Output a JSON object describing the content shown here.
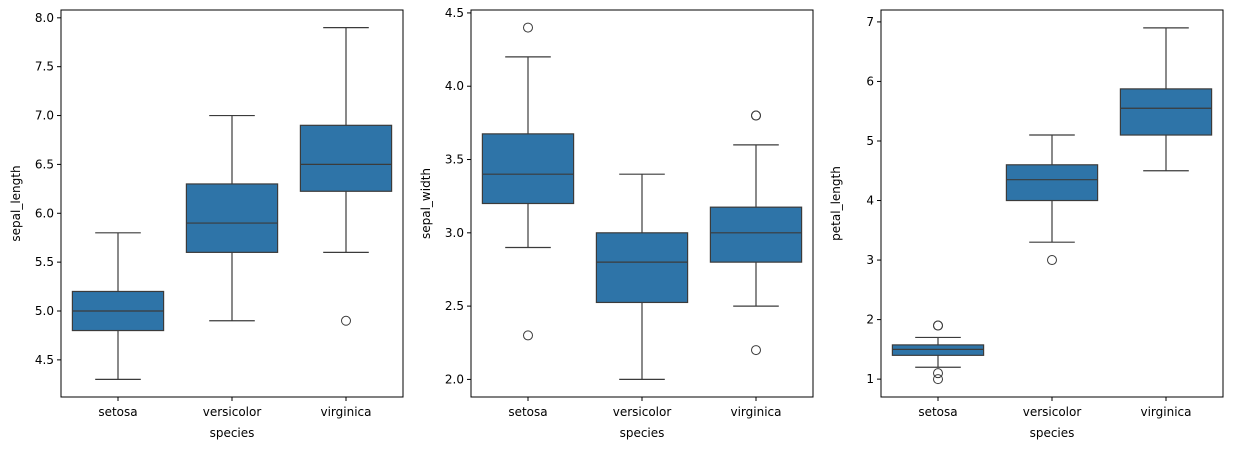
{
  "chart_data": [
    {
      "type": "box",
      "xlabel": "species",
      "ylabel": "sepal_length",
      "categories": [
        "setosa",
        "versicolor",
        "virginica"
      ],
      "ylim": [
        4.12,
        8.08
      ],
      "yticks": [
        "4.5",
        "5.0",
        "5.5",
        "6.0",
        "6.5",
        "7.0",
        "7.5",
        "8.0"
      ],
      "box_color": "#2e74a8",
      "boxes": [
        {
          "category": "setosa",
          "whisker_low": 4.3,
          "q1": 4.8,
          "median": 5.0,
          "q3": 5.2,
          "whisker_high": 5.8,
          "outliers": []
        },
        {
          "category": "versicolor",
          "whisker_low": 4.9,
          "q1": 5.6,
          "median": 5.9,
          "q3": 6.3,
          "whisker_high": 7.0,
          "outliers": []
        },
        {
          "category": "virginica",
          "whisker_low": 5.6,
          "q1": 6.225,
          "median": 6.5,
          "q3": 6.9,
          "whisker_high": 7.9,
          "outliers": [
            4.9
          ]
        }
      ]
    },
    {
      "type": "box",
      "xlabel": "species",
      "ylabel": "sepal_width",
      "categories": [
        "setosa",
        "versicolor",
        "virginica"
      ],
      "ylim": [
        1.88,
        4.52
      ],
      "yticks": [
        "2.0",
        "2.5",
        "3.0",
        "3.5",
        "4.0",
        "4.5"
      ],
      "box_color": "#2e74a8",
      "boxes": [
        {
          "category": "setosa",
          "whisker_low": 2.9,
          "q1": 3.2,
          "median": 3.4,
          "q3": 3.675,
          "whisker_high": 4.2,
          "outliers": [
            2.3,
            4.4
          ]
        },
        {
          "category": "versicolor",
          "whisker_low": 2.0,
          "q1": 2.525,
          "median": 2.8,
          "q3": 3.0,
          "whisker_high": 3.4,
          "outliers": []
        },
        {
          "category": "virginica",
          "whisker_low": 2.5,
          "q1": 2.8,
          "median": 3.0,
          "q3": 3.175,
          "whisker_high": 3.6,
          "outliers": [
            2.2,
            3.8,
            3.8
          ]
        }
      ]
    },
    {
      "type": "box",
      "xlabel": "species",
      "ylabel": "petal_length",
      "categories": [
        "setosa",
        "versicolor",
        "virginica"
      ],
      "ylim": [
        0.7,
        7.2
      ],
      "yticks": [
        "1",
        "2",
        "3",
        "4",
        "5",
        "6",
        "7"
      ],
      "box_color": "#2e74a8",
      "boxes": [
        {
          "category": "setosa",
          "whisker_low": 1.2,
          "q1": 1.4,
          "median": 1.5,
          "q3": 1.575,
          "whisker_high": 1.7,
          "outliers": [
            1.0,
            1.1,
            1.9,
            1.9
          ]
        },
        {
          "category": "versicolor",
          "whisker_low": 3.3,
          "q1": 4.0,
          "median": 4.35,
          "q3": 4.6,
          "whisker_high": 5.1,
          "outliers": [
            3.0
          ]
        },
        {
          "category": "virginica",
          "whisker_low": 4.5,
          "q1": 5.1,
          "median": 5.55,
          "q3": 5.875,
          "whisker_high": 6.9,
          "outliers": []
        }
      ]
    }
  ]
}
